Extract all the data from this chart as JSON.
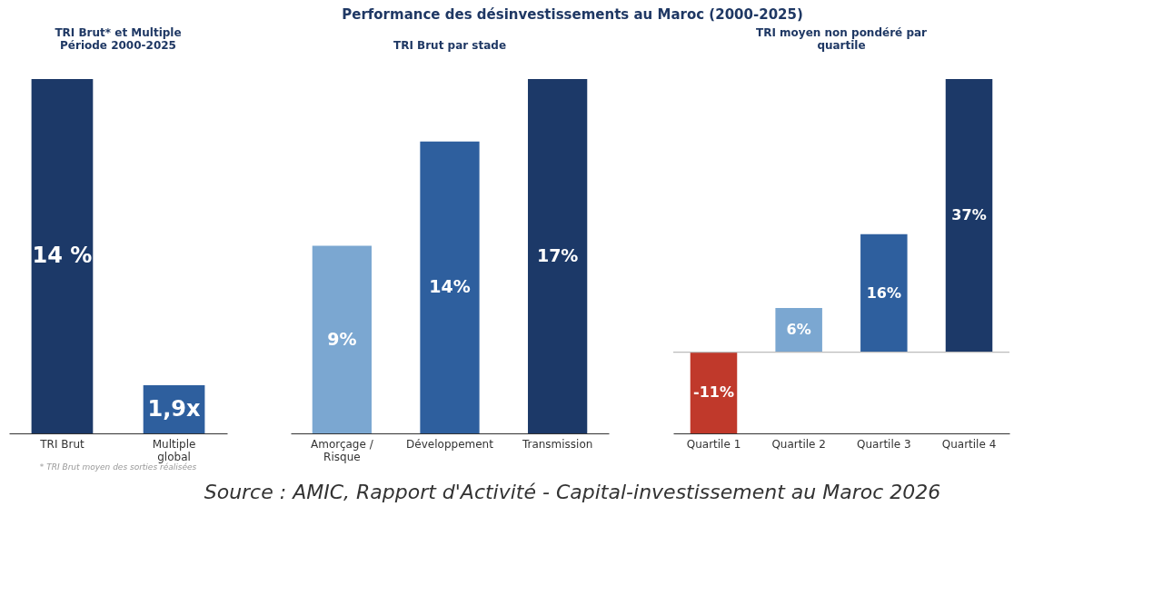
{
  "chart_data": [
    {
      "type": "bar",
      "subtitle": "TRI Brut* et Multiple Période 2000-2025",
      "categories": [
        "TRI Brut",
        "Multiple global"
      ],
      "values": [
        14,
        1.9
      ],
      "colors": [
        "#1c3968",
        "#2e5f9e"
      ],
      "value_labels": [
        "14 %",
        "1,9x"
      ],
      "tick_labels": "x",
      "annotations": [
        "* TRI Brut moyen des sorties réalisées"
      ]
    },
    {
      "type": "bar",
      "title": "Performance des désinvestissements au Maroc (2000-2025)",
      "subtitle": "TRI Brut par stade",
      "categories": [
        "Amorçage / Risque",
        "Développement",
        "Transmission"
      ],
      "values": [
        9,
        14,
        17
      ],
      "colors": [
        "#7ba7d1",
        "#2e5f9e",
        "#1c3968"
      ],
      "value_labels": [
        "9%",
        "14%",
        "17%"
      ],
      "tick_labels": "x",
      "annotations": [
        "Source : AMIC, Rapport d'Activité - Capital-investissement  au Maroc 2026"
      ]
    },
    {
      "type": "bar",
      "subtitle": "TRI moyen non pondéré par quartile",
      "categories": [
        "Quartile 1",
        "Quartile 2",
        "Quartile 3",
        "Quartile 4"
      ],
      "values": [
        -11,
        6,
        16,
        37
      ],
      "colors": [
        "#c0392b",
        "#7ba7d1",
        "#2e5f9e",
        "#1c3968"
      ],
      "value_labels": [
        "-11%",
        "6%",
        "16%",
        "37%"
      ],
      "tick_labels": "x",
      "ref_lines": [
        {
          "axis": "y",
          "value": 0,
          "color": "#bbbbbb"
        }
      ]
    }
  ]
}
